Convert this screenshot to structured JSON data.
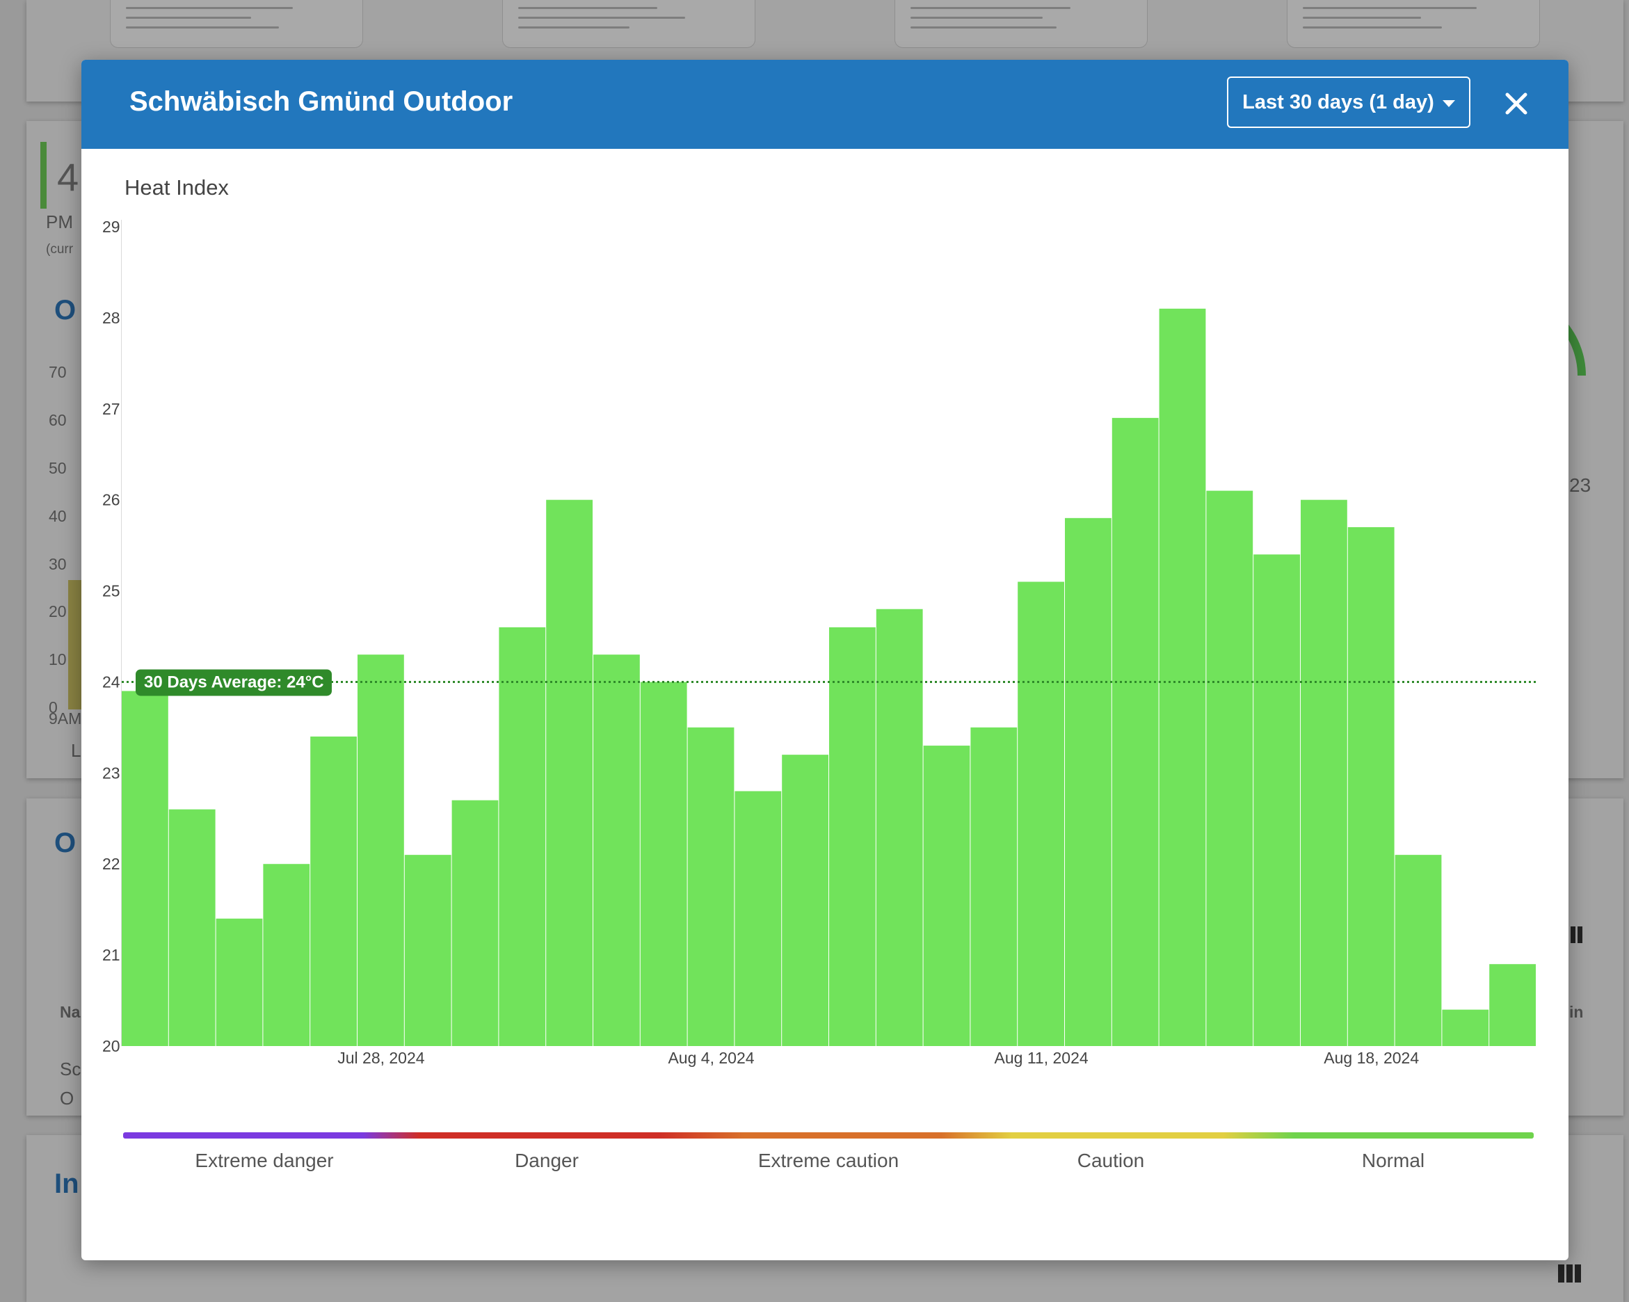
{
  "modal": {
    "title": "Schwäbisch Gmünd Outdoor",
    "range_label": "Last 30 days (1 day)",
    "close_icon": "close-icon",
    "dropdown_icon": "caret-down-icon"
  },
  "chart_data": {
    "type": "bar",
    "title": "Heat Index",
    "xlabel": "",
    "ylabel": "",
    "ylim": [
      20,
      29
    ],
    "yticks": [
      20,
      21,
      22,
      23,
      24,
      25,
      26,
      27,
      28,
      29
    ],
    "x_tick_labels": [
      "Jul 28, 2024",
      "Aug 4, 2024",
      "Aug 11, 2024",
      "Aug 18, 2024"
    ],
    "x_tick_indices": [
      5.5,
      12.5,
      19.5,
      26.5
    ],
    "bar_color": "#71e35b",
    "values": [
      23.9,
      22.6,
      21.4,
      22.0,
      23.4,
      24.3,
      22.1,
      22.7,
      24.6,
      26.0,
      24.3,
      24.0,
      23.5,
      22.8,
      23.2,
      24.6,
      24.8,
      23.3,
      23.5,
      25.1,
      25.8,
      26.9,
      28.1,
      26.1,
      25.4,
      26.0,
      25.7,
      22.1,
      20.4,
      20.9
    ],
    "average": {
      "value": 24,
      "label": "30 Days Average: 24°C",
      "color": "#2f8a2a"
    },
    "grid": false
  },
  "legend": {
    "labels": [
      "Extreme danger",
      "Danger",
      "Extreme caution",
      "Caution",
      "Normal"
    ],
    "colors": [
      "#7b3ae0",
      "#cf2e26",
      "#d8702a",
      "#e2cf42",
      "#6fd34c"
    ]
  }
}
